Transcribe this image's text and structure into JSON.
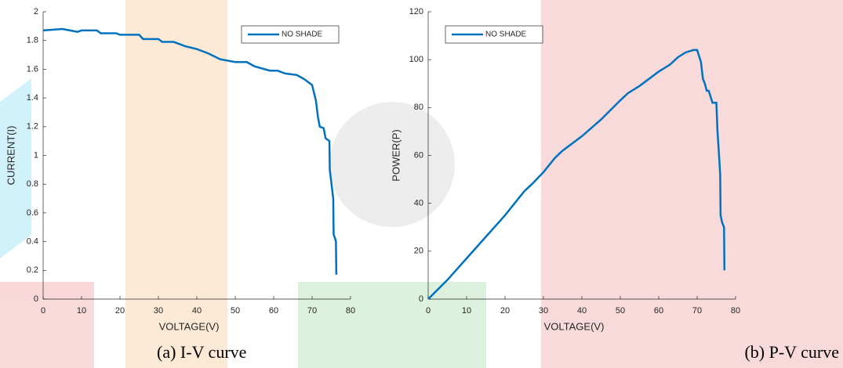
{
  "chart_data": [
    {
      "type": "line",
      "caption": "(a) I-V curve",
      "xlabel": "VOLTAGE(V)",
      "ylabel": "CURRENT(I)",
      "xlim": [
        0,
        80
      ],
      "ylim": [
        0,
        2
      ],
      "xticks": [
        0,
        10,
        20,
        30,
        40,
        50,
        60,
        70,
        80
      ],
      "yticks": [
        0,
        0.2,
        0.4,
        0.6,
        0.8,
        1,
        1.2,
        1.4,
        1.6,
        1.8,
        2
      ],
      "legend": "upper right",
      "x": [
        0,
        5,
        7,
        9,
        10,
        14,
        15,
        19,
        20,
        25,
        26,
        30,
        31,
        34,
        37,
        40,
        43,
        46,
        50,
        53,
        55,
        59,
        61,
        63,
        66,
        68,
        70,
        71,
        71.5,
        72,
        73,
        73.5,
        74.5,
        74.6,
        75.5,
        75.6,
        76,
        76.2,
        76.3
      ],
      "series": [
        {
          "name": "NO SHADE",
          "color": "#0072bd",
          "values": [
            1.87,
            1.88,
            1.87,
            1.86,
            1.87,
            1.87,
            1.85,
            1.85,
            1.84,
            1.84,
            1.81,
            1.81,
            1.79,
            1.79,
            1.76,
            1.74,
            1.71,
            1.67,
            1.65,
            1.65,
            1.62,
            1.59,
            1.59,
            1.57,
            1.56,
            1.53,
            1.49,
            1.38,
            1.27,
            1.2,
            1.19,
            1.12,
            1.1,
            0.9,
            0.7,
            0.45,
            0.42,
            0.4,
            0.17
          ]
        }
      ]
    },
    {
      "type": "line",
      "caption": "(b) P-V curve",
      "xlabel": "VOLTAGE(V)",
      "ylabel": "POWER(P)",
      "xlim": [
        0,
        80
      ],
      "ylim": [
        0,
        120
      ],
      "xticks": [
        0,
        10,
        20,
        30,
        40,
        50,
        60,
        70,
        80
      ],
      "yticks": [
        0,
        20,
        40,
        60,
        80,
        100,
        120
      ],
      "legend": "upper left",
      "x": [
        0,
        5,
        10,
        15,
        20,
        25,
        27,
        30,
        33,
        35,
        40,
        45,
        50,
        52,
        55,
        60,
        63,
        65,
        67,
        69,
        70,
        71,
        71.5,
        72,
        72.5,
        73,
        74,
        75,
        75.3,
        75.7,
        76,
        76.1,
        76.5,
        77,
        77.1
      ],
      "series": [
        {
          "name": "NO SHADE",
          "color": "#0072bd",
          "values": [
            0,
            8,
            17,
            26,
            35,
            45,
            48,
            53,
            59,
            62,
            68,
            75,
            83,
            86,
            89,
            95,
            98,
            101,
            103,
            104,
            104,
            99,
            92,
            90,
            87,
            87,
            82,
            82,
            70,
            60,
            52,
            35,
            32,
            30,
            12
          ]
        }
      ]
    }
  ]
}
